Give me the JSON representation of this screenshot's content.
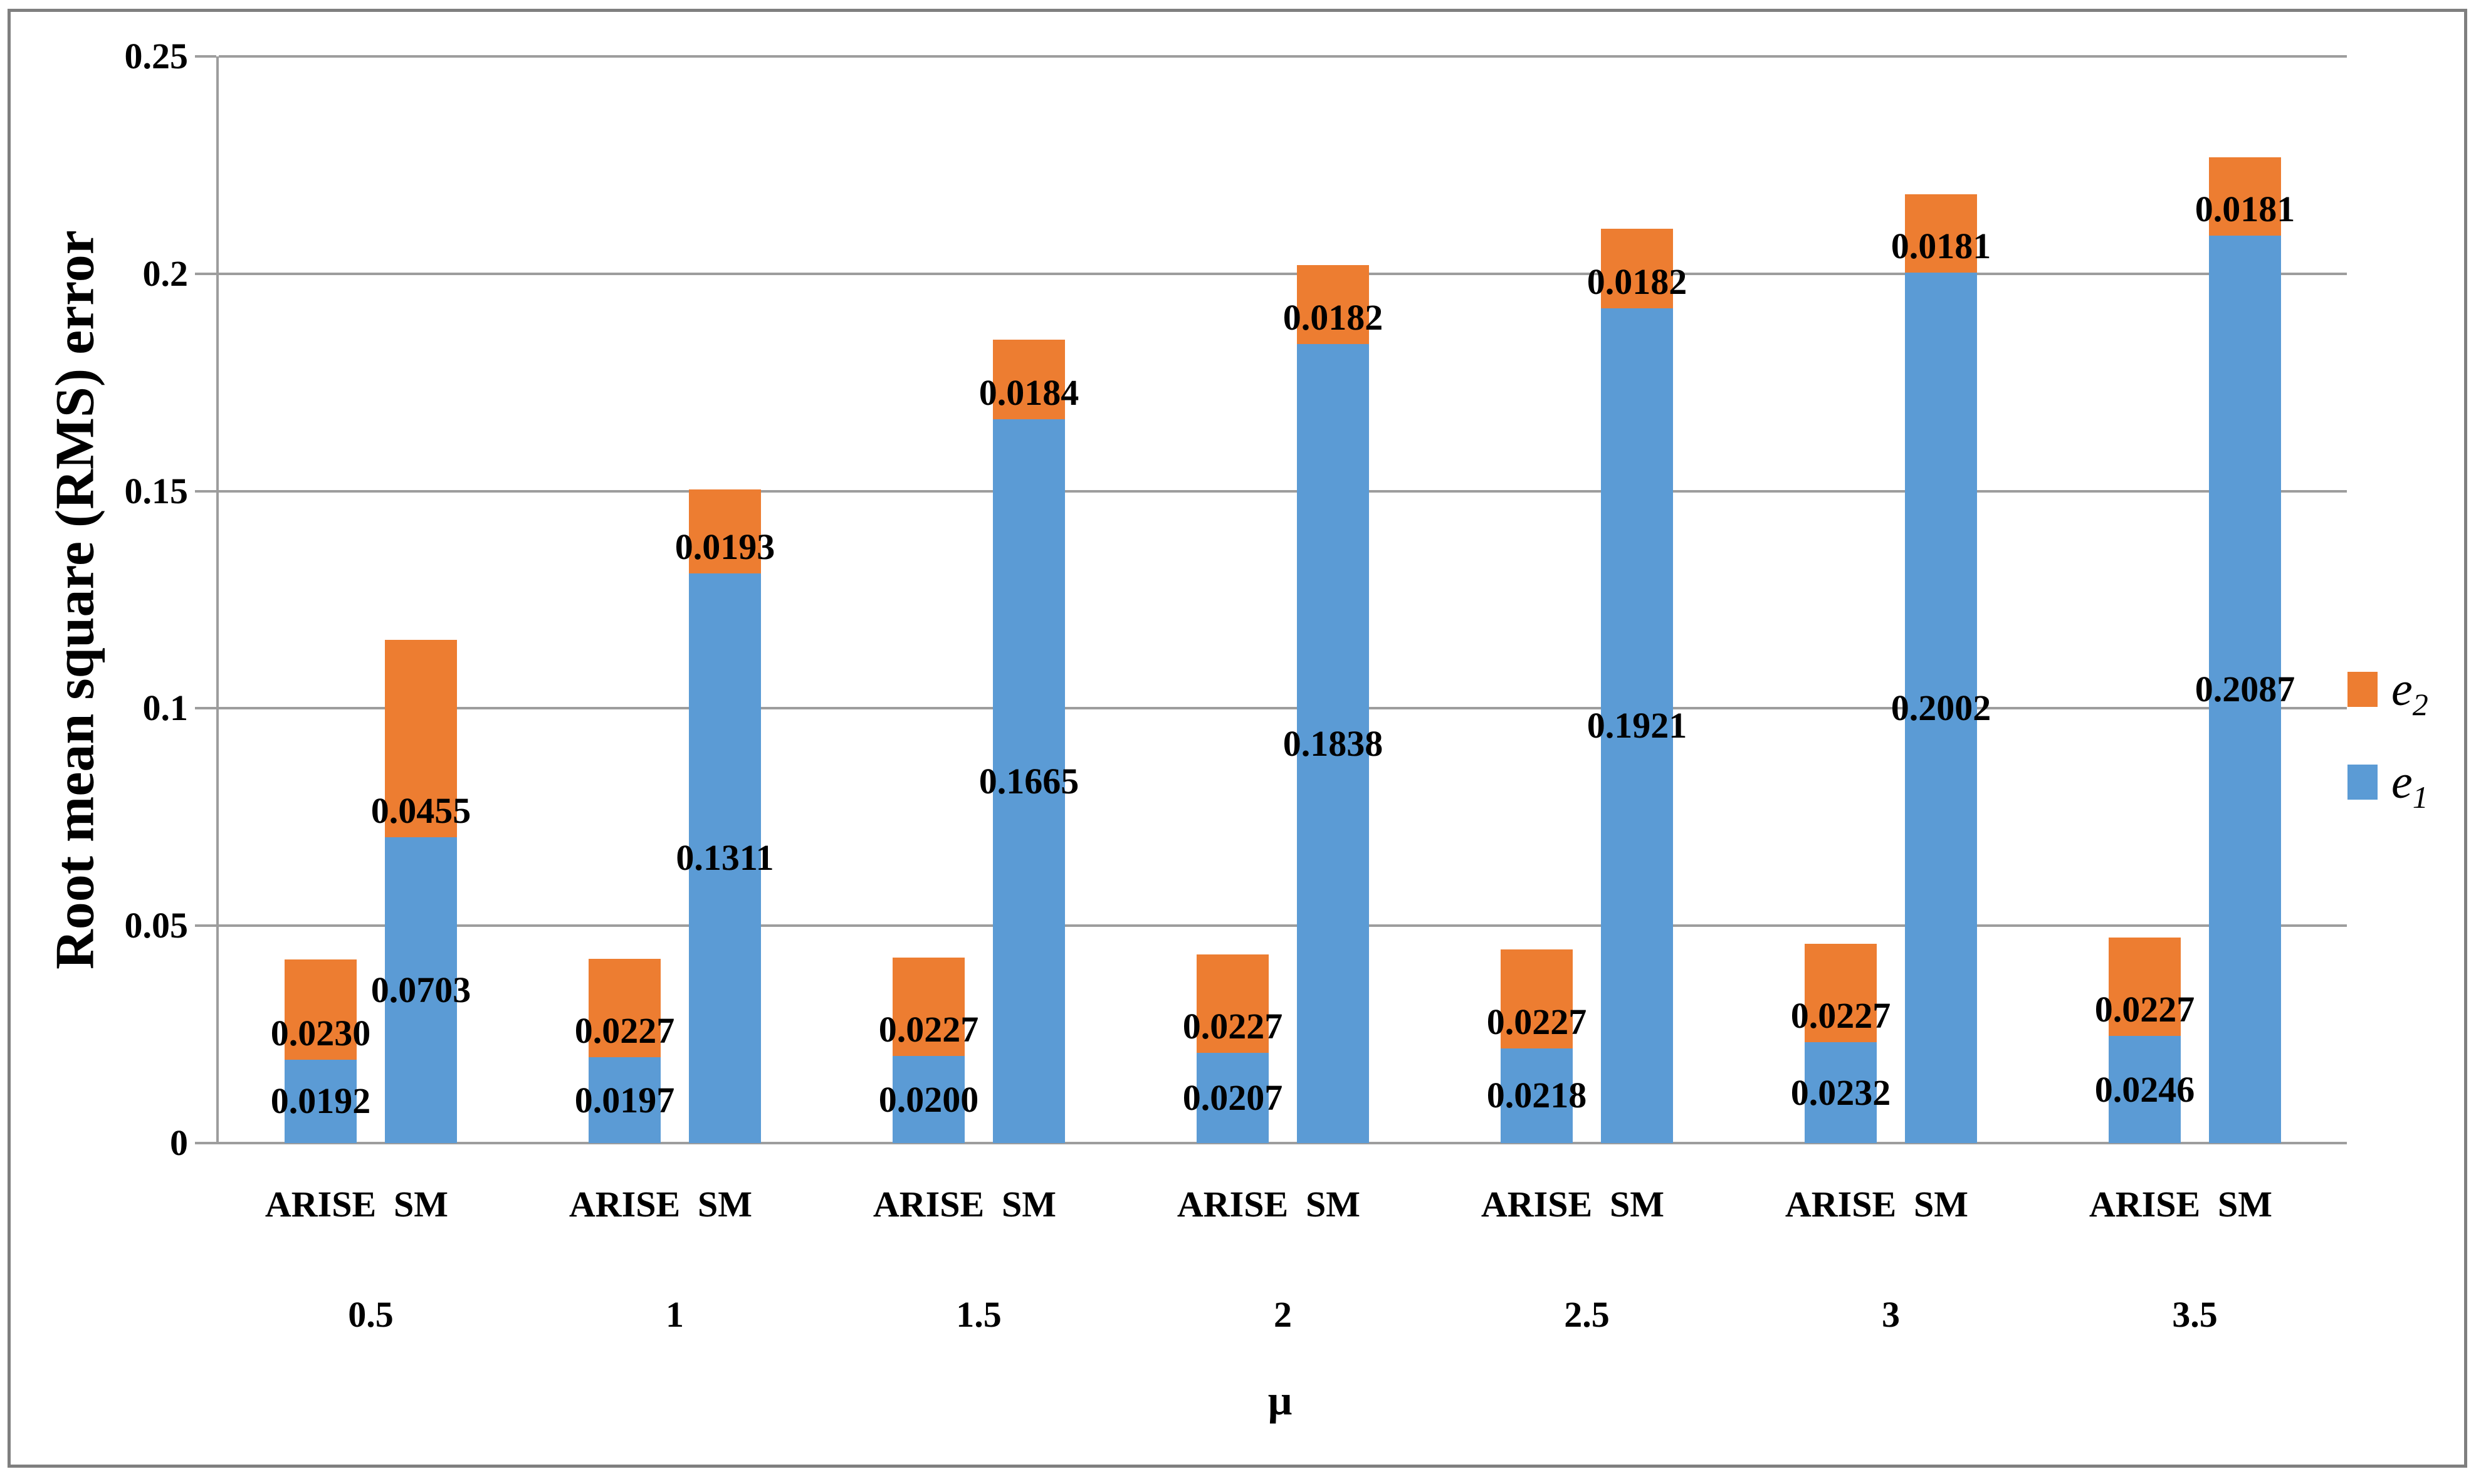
{
  "chart_data": {
    "type": "bar",
    "stacked": true,
    "title": "",
    "ylabel": "Root mean square (RMS) error",
    "xlabel": "μ",
    "ylim": [
      0,
      0.25
    ],
    "ytick_labels": [
      "0",
      "0.05",
      "0.1",
      "0.15",
      "0.2",
      "0.25"
    ],
    "grid": "horizontal",
    "legend_position": "right",
    "colors": {
      "e1": "#5B9BD5",
      "e2": "#ED7D31",
      "gridline": "#9D9D9D",
      "axis": "#9D9D9D",
      "frame": "#7F7F7F",
      "label_text": "#000000"
    },
    "legend": [
      {
        "series": "e2",
        "base": "e",
        "sub": "2",
        "color": "#ED7D31"
      },
      {
        "series": "e1",
        "base": "e",
        "sub": "1",
        "color": "#5B9BD5"
      }
    ],
    "bar_methods": [
      "ARISE",
      "SM"
    ],
    "groups": [
      {
        "mu": "0.5",
        "bars": [
          {
            "method": "ARISE",
            "e1": "0.0192",
            "e2": "0.0230"
          },
          {
            "method": "SM",
            "e1": "0.0703",
            "e2": "0.0455"
          }
        ]
      },
      {
        "mu": "1",
        "bars": [
          {
            "method": "ARISE",
            "e1": "0.0197",
            "e2": "0.0227"
          },
          {
            "method": "SM",
            "e1": "0.1311",
            "e2": "0.0193"
          }
        ]
      },
      {
        "mu": "1.5",
        "bars": [
          {
            "method": "ARISE",
            "e1": "0.0200",
            "e2": "0.0227"
          },
          {
            "method": "SM",
            "e1": "0.1665",
            "e2": "0.0184"
          }
        ]
      },
      {
        "mu": "2",
        "bars": [
          {
            "method": "ARISE",
            "e1": "0.0207",
            "e2": "0.0227"
          },
          {
            "method": "SM",
            "e1": "0.1838",
            "e2": "0.0182"
          }
        ]
      },
      {
        "mu": "2.5",
        "bars": [
          {
            "method": "ARISE",
            "e1": "0.0218",
            "e2": "0.0227"
          },
          {
            "method": "SM",
            "e1": "0.1921",
            "e2": "0.0182"
          }
        ]
      },
      {
        "mu": "3",
        "bars": [
          {
            "method": "ARISE",
            "e1": "0.0232",
            "e2": "0.0227"
          },
          {
            "method": "SM",
            "e1": "0.2002",
            "e2": "0.0181"
          }
        ]
      },
      {
        "mu": "3.5",
        "bars": [
          {
            "method": "ARISE",
            "e1": "0.0246",
            "e2": "0.0227"
          },
          {
            "method": "SM",
            "e1": "0.2087",
            "e2": "0.0181"
          }
        ]
      }
    ]
  }
}
